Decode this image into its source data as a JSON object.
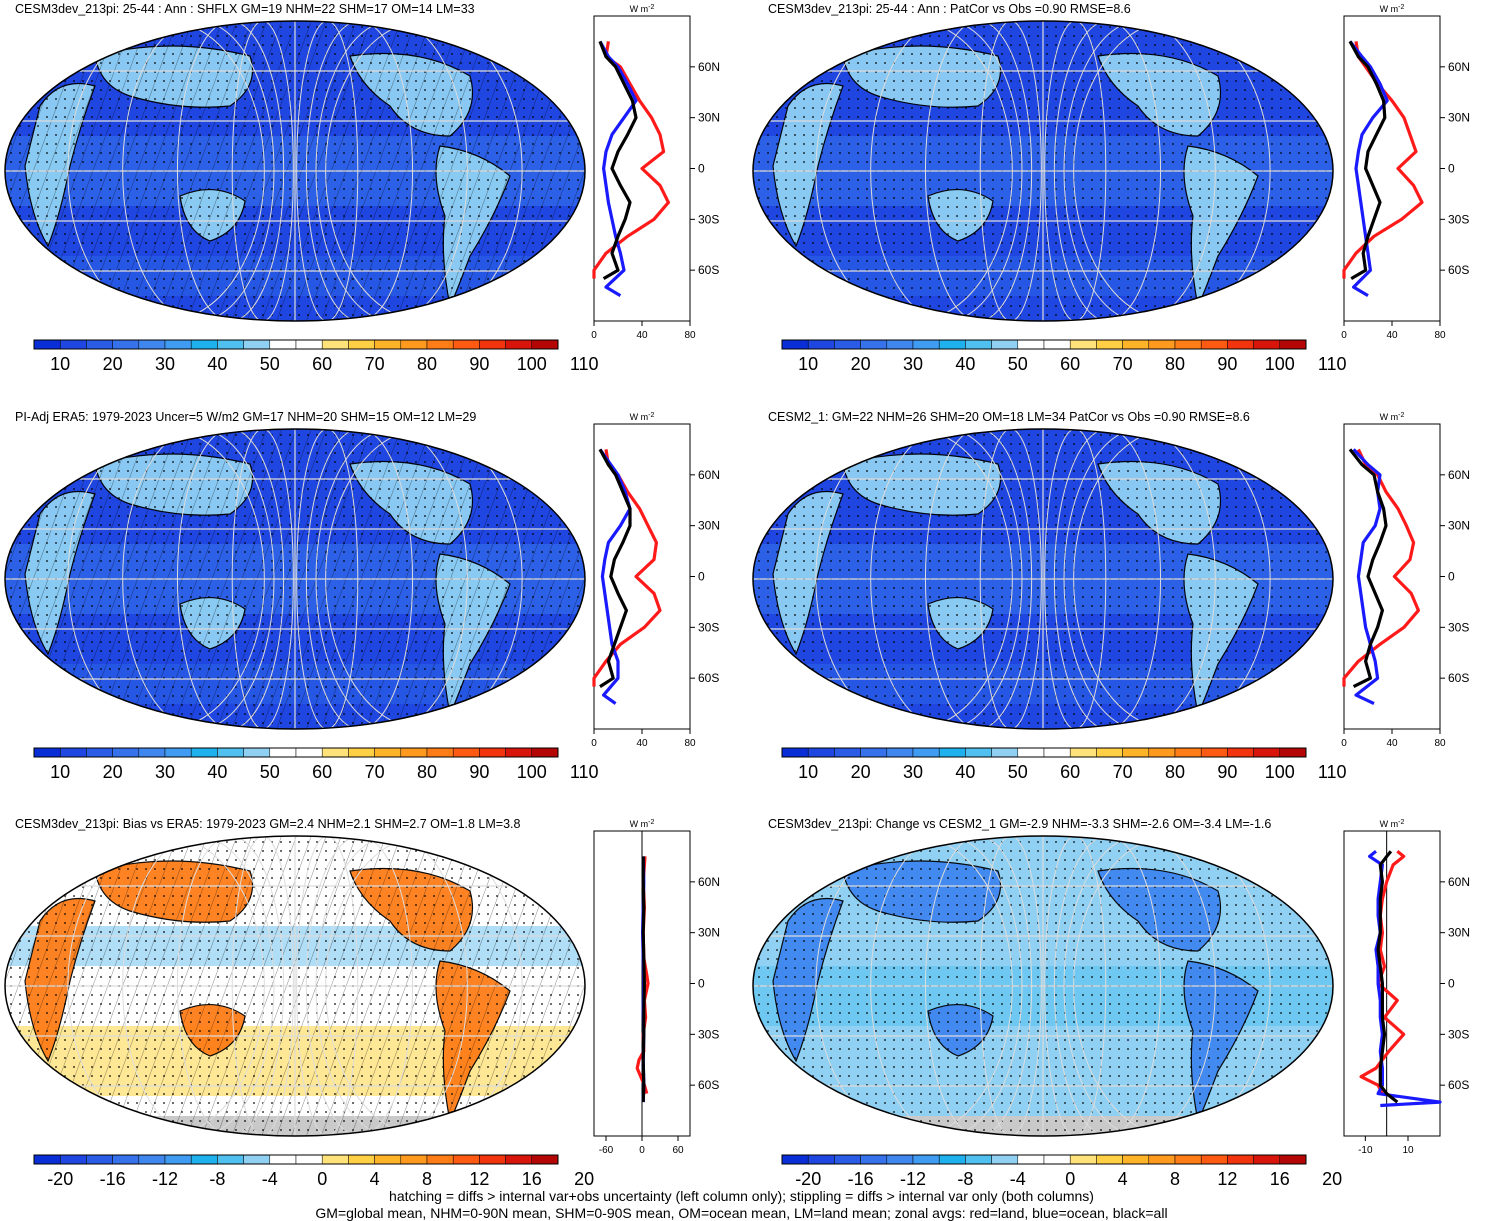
{
  "panels": [
    {
      "title": "CESM3dev_213pi: 25-44 : Ann : SHFLX GM=19 NHM=22 SHM=17 OM=14 LM=33",
      "kind": "abs",
      "hatching": true,
      "colorbar": {
        "labels": [
          "10",
          "20",
          "30",
          "40",
          "50",
          "60",
          "70",
          "80",
          "90",
          "100",
          "110"
        ]
      },
      "zonal": {
        "unit": "W m",
        "unit_exp": "-2",
        "xticks": [
          "0",
          "40",
          "80"
        ],
        "xlim": [
          0,
          80
        ]
      }
    },
    {
      "title": "CESM3dev_213pi: 25-44 : Ann : PatCor vs Obs =0.90 RMSE=8.6",
      "kind": "abs",
      "hatching": false,
      "colorbar": {
        "labels": [
          "10",
          "20",
          "30",
          "40",
          "50",
          "60",
          "70",
          "80",
          "90",
          "100",
          "110"
        ]
      },
      "zonal": {
        "unit": "W m",
        "unit_exp": "-2",
        "xticks": [
          "0",
          "40",
          "80"
        ],
        "xlim": [
          0,
          80
        ]
      }
    },
    {
      "title": "PI-Adj ERA5: 1979-2023 Uncer=5 W/m2 GM=17 NHM=20 SHM=15 OM=12 LM=29",
      "kind": "abs",
      "hatching": true,
      "colorbar": {
        "labels": [
          "10",
          "20",
          "30",
          "40",
          "50",
          "60",
          "70",
          "80",
          "90",
          "100",
          "110"
        ]
      },
      "zonal": {
        "unit": "W m",
        "unit_exp": "-2",
        "xticks": [
          "0",
          "40",
          "80"
        ],
        "xlim": [
          0,
          80
        ]
      }
    },
    {
      "title": "CESM2_1: GM=22 NHM=26 SHM=20 OM=18 LM=34 PatCor vs Obs =0.90 RMSE=8.6",
      "kind": "abs",
      "hatching": false,
      "colorbar": {
        "labels": [
          "10",
          "20",
          "30",
          "40",
          "50",
          "60",
          "70",
          "80",
          "90",
          "100",
          "110"
        ]
      },
      "zonal": {
        "unit": "W m",
        "unit_exp": "-2",
        "xticks": [
          "0",
          "40",
          "80"
        ],
        "xlim": [
          0,
          80
        ]
      }
    },
    {
      "title": "CESM3dev_213pi: Bias vs ERA5: 1979-2023 GM=2.4 NHM=2.1 SHM=2.7 OM=1.8 LM=3.8",
      "kind": "diff",
      "hatching": true,
      "colorbar": {
        "labels": [
          "-20",
          "-16",
          "-12",
          "-8",
          "-4",
          "0",
          "4",
          "8",
          "12",
          "16",
          "20"
        ]
      },
      "zonal": {
        "unit": "W m",
        "unit_exp": "-2",
        "xticks": [
          "-60",
          "0",
          "60"
        ],
        "xlim": [
          -80,
          80
        ]
      }
    },
    {
      "title": "CESM3dev_213pi: Change vs CESM2_1 GM=-2.9 NHM=-3.3 SHM=-2.6 OM=-3.4 LM=-1.6",
      "kind": "diff",
      "hatching": false,
      "colorbar": {
        "labels": [
          "-20",
          "-16",
          "-12",
          "-8",
          "-4",
          "0",
          "4",
          "8",
          "12",
          "16",
          "20"
        ]
      },
      "zonal": {
        "unit": "W m",
        "unit_exp": "-2",
        "xticks": [
          "-10",
          "10"
        ],
        "xlim": [
          -20,
          25
        ]
      }
    }
  ],
  "lat_labels": [
    "60N",
    "30N",
    "0",
    "30S",
    "60S"
  ],
  "colors": {
    "abs": [
      "#0a2ed6",
      "#1f46e0",
      "#2a5ce6",
      "#3672ea",
      "#3f86ef",
      "#3f9cf2",
      "#1fb0ee",
      "#4fc0ef",
      "#8fd0f3",
      "#ffffff",
      "#ffffff",
      "#ffe27a",
      "#ffcf45",
      "#ffb428",
      "#ff9a1f",
      "#ff7d17",
      "#ff5a12",
      "#f1330e",
      "#d8150b",
      "#b50606"
    ],
    "diff": [
      "#0a2ed6",
      "#1f46e0",
      "#2a5ce6",
      "#3672ea",
      "#3f86ef",
      "#3f9cf2",
      "#1fb0ee",
      "#4fc0ef",
      "#8fd0f3",
      "#ffffff",
      "#ffffff",
      "#ffe27a",
      "#ffcf45",
      "#ffb428",
      "#ff9a1f",
      "#ff7d17",
      "#ff5a12",
      "#f1330e",
      "#d8150b",
      "#b50606"
    ]
  },
  "chart_data": [
    {
      "type": "line",
      "title": "CESM3dev_213pi: 25-44 : Ann : SHFLX GM=19 NHM=22 SHM=17 OM=14 LM=33",
      "ylabel": "",
      "xlim": [
        0,
        80
      ],
      "ylim": [
        -90,
        90
      ],
      "series": [
        {
          "name": "red",
          "values_lat": [
            75,
            66,
            60,
            50,
            40,
            30,
            20,
            10,
            0,
            -10,
            -20,
            -30,
            -40,
            -50,
            -60,
            -65
          ],
          "values": [
            12,
            10,
            22,
            30,
            38,
            48,
            55,
            58,
            40,
            55,
            62,
            50,
            28,
            10,
            0,
            0
          ]
        },
        {
          "name": "blue",
          "values_lat": [
            75,
            66,
            60,
            50,
            40,
            30,
            20,
            10,
            0,
            -10,
            -20,
            -30,
            -40,
            -50,
            -60,
            -70,
            -75
          ],
          "values": [
            5,
            12,
            20,
            28,
            35,
            25,
            15,
            10,
            8,
            10,
            12,
            15,
            18,
            22,
            25,
            10,
            22
          ]
        },
        {
          "name": "black",
          "values_lat": [
            75,
            66,
            60,
            50,
            40,
            30,
            20,
            10,
            0,
            -10,
            -20,
            -30,
            -40,
            -50,
            -60,
            -65
          ],
          "values": [
            5,
            10,
            18,
            25,
            32,
            35,
            28,
            20,
            15,
            22,
            30,
            26,
            20,
            15,
            20,
            8
          ]
        }
      ]
    },
    {
      "type": "line",
      "title": "CESM3dev_213pi: 25-44 : Ann : PatCor vs Obs =0.90 RMSE=8.6",
      "ylabel": "",
      "xlim": [
        0,
        80
      ],
      "ylim": [
        -90,
        90
      ],
      "series": [
        {
          "name": "red",
          "values_lat": [
            75,
            66,
            60,
            50,
            40,
            30,
            20,
            10,
            0,
            -10,
            -20,
            -30,
            -40,
            -50,
            -60,
            -65
          ],
          "values": [
            10,
            12,
            18,
            28,
            40,
            50,
            55,
            60,
            45,
            58,
            65,
            48,
            25,
            10,
            0,
            0
          ]
        },
        {
          "name": "blue",
          "values_lat": [
            75,
            66,
            60,
            50,
            40,
            30,
            20,
            10,
            0,
            -10,
            -20,
            -30,
            -40,
            -50,
            -60,
            -70,
            -75
          ],
          "values": [
            5,
            15,
            22,
            30,
            36,
            24,
            15,
            12,
            10,
            12,
            14,
            16,
            18,
            20,
            22,
            8,
            20
          ]
        },
        {
          "name": "black",
          "values_lat": [
            75,
            66,
            60,
            50,
            40,
            30,
            20,
            10,
            0,
            -10,
            -20,
            -30,
            -40,
            -50,
            -60,
            -65
          ],
          "values": [
            5,
            12,
            20,
            27,
            33,
            34,
            27,
            20,
            18,
            24,
            30,
            25,
            20,
            16,
            18,
            6
          ]
        }
      ]
    },
    {
      "type": "line",
      "title": "PI-Adj ERA5: 1979-2023 Uncer=5 W/m2 GM=17 NHM=20 SHM=15 OM=12 LM=29",
      "ylabel": "",
      "xlim": [
        0,
        80
      ],
      "ylim": [
        -90,
        90
      ],
      "series": [
        {
          "name": "red",
          "values_lat": [
            75,
            66,
            60,
            50,
            40,
            30,
            20,
            10,
            0,
            -10,
            -20,
            -30,
            -40,
            -50,
            -60,
            -65
          ],
          "values": [
            10,
            12,
            20,
            28,
            38,
            45,
            52,
            50,
            35,
            50,
            55,
            42,
            22,
            10,
            0,
            0
          ]
        },
        {
          "name": "blue",
          "values_lat": [
            75,
            66,
            60,
            50,
            40,
            30,
            20,
            10,
            0,
            -10,
            -20,
            -30,
            -40,
            -50,
            -60,
            -70,
            -75
          ],
          "values": [
            5,
            14,
            20,
            26,
            30,
            22,
            12,
            9,
            7,
            9,
            11,
            13,
            15,
            20,
            20,
            8,
            18
          ]
        },
        {
          "name": "black",
          "values_lat": [
            75,
            66,
            60,
            50,
            40,
            30,
            20,
            10,
            0,
            -10,
            -20,
            -30,
            -40,
            -50,
            -60,
            -65
          ],
          "values": [
            5,
            12,
            18,
            24,
            30,
            30,
            24,
            17,
            14,
            20,
            27,
            22,
            17,
            12,
            16,
            5
          ]
        }
      ]
    },
    {
      "type": "line",
      "title": "CESM2_1: GM=22 NHM=26 SHM=20 OM=18 LM=34 PatCor vs Obs =0.90 RMSE=8.6",
      "ylabel": "",
      "xlim": [
        0,
        80
      ],
      "ylim": [
        -90,
        90
      ],
      "series": [
        {
          "name": "red",
          "values_lat": [
            75,
            66,
            60,
            50,
            40,
            30,
            20,
            10,
            0,
            -10,
            -20,
            -30,
            -40,
            -50,
            -60,
            -65
          ],
          "values": [
            12,
            18,
            28,
            35,
            45,
            52,
            58,
            55,
            42,
            56,
            62,
            50,
            30,
            12,
            0,
            0
          ]
        },
        {
          "name": "blue",
          "values_lat": [
            75,
            66,
            60,
            50,
            40,
            30,
            20,
            10,
            0,
            -10,
            -20,
            -30,
            -40,
            -50,
            -60,
            -70,
            -75
          ],
          "values": [
            8,
            20,
            30,
            28,
            30,
            26,
            16,
            14,
            12,
            14,
            16,
            18,
            22,
            26,
            28,
            10,
            25
          ]
        },
        {
          "name": "black",
          "values_lat": [
            75,
            66,
            60,
            50,
            40,
            30,
            20,
            10,
            0,
            -10,
            -20,
            -30,
            -40,
            -50,
            -60,
            -65
          ],
          "values": [
            5,
            15,
            25,
            28,
            33,
            35,
            30,
            24,
            20,
            26,
            32,
            28,
            22,
            18,
            22,
            8
          ]
        }
      ]
    },
    {
      "type": "line",
      "title": "CESM3dev_213pi: Bias vs ERA5: 1979-2023 GM=2.4 NHM=2.1 SHM=2.7 OM=1.8 LM=3.8",
      "ylabel": "",
      "xlim": [
        -80,
        80
      ],
      "ylim": [
        -90,
        90
      ],
      "series": [
        {
          "name": "red",
          "values_lat": [
            75,
            60,
            45,
            30,
            15,
            5,
            0,
            -10,
            -20,
            -30,
            -40,
            -45,
            -50,
            -55,
            -60,
            -65
          ],
          "values": [
            5,
            2,
            4,
            2,
            3,
            8,
            10,
            4,
            6,
            2,
            3,
            -5,
            -8,
            -2,
            4,
            8
          ]
        },
        {
          "name": "blue",
          "values_lat": [
            75,
            60,
            45,
            30,
            15,
            0,
            -15,
            -30,
            -45,
            -60,
            -70
          ],
          "values": [
            2,
            3,
            2,
            1,
            2,
            3,
            2,
            3,
            2,
            3,
            2
          ]
        },
        {
          "name": "black",
          "values_lat": [
            75,
            60,
            45,
            30,
            15,
            0,
            -15,
            -30,
            -45,
            -60,
            -70
          ],
          "values": [
            2,
            2,
            3,
            2,
            3,
            4,
            3,
            3,
            2,
            3,
            2
          ]
        }
      ]
    },
    {
      "type": "line",
      "title": "CESM3dev_213pi: Change vs CESM2_1 GM=-2.9 NHM=-3.3 SHM=-2.6 OM=-3.4 LM=-1.6",
      "ylabel": "",
      "xlim": [
        -20,
        25
      ],
      "ylim": [
        -90,
        90
      ],
      "series": [
        {
          "name": "red",
          "values_lat": [
            78,
            75,
            70,
            60,
            50,
            40,
            30,
            20,
            10,
            0,
            -10,
            -20,
            -30,
            -40,
            -50,
            -55,
            -60,
            -65
          ],
          "values": [
            5,
            8,
            3,
            0,
            -2,
            -3,
            -2,
            -3,
            -1,
            -4,
            5,
            -1,
            8,
            1,
            -5,
            -12,
            -4,
            -2
          ]
        },
        {
          "name": "blue",
          "values_lat": [
            78,
            75,
            70,
            60,
            50,
            40,
            30,
            20,
            10,
            0,
            -10,
            -20,
            -30,
            -40,
            -50,
            -60,
            -65,
            -70,
            -72
          ],
          "values": [
            -5,
            -8,
            -2,
            -3,
            -4,
            -4,
            -3,
            -5,
            -4,
            -4,
            -3,
            -3,
            -2,
            -3,
            -2,
            -2,
            -4,
            25,
            -3
          ]
        },
        {
          "name": "black",
          "values_lat": [
            78,
            75,
            70,
            60,
            50,
            40,
            30,
            20,
            10,
            0,
            -10,
            -20,
            -30,
            -40,
            -50,
            -60,
            -65,
            -70
          ],
          "values": [
            2,
            0,
            -3,
            -2,
            -3,
            -3,
            -3,
            -4,
            -3,
            -2,
            -2,
            -2,
            -1,
            -2,
            -3,
            -3,
            0,
            5
          ]
        }
      ]
    }
  ],
  "footer": {
    "line1": "hatching = diffs > internal var+obs uncertainty (left column only); stippling = diffs > internal var only (both columns)",
    "line2": "GM=global mean, NHM=0-90N mean, SHM=0-90S mean, OM=ocean mean, LM=land mean; zonal avgs: red=land, blue=ocean, black=all"
  }
}
